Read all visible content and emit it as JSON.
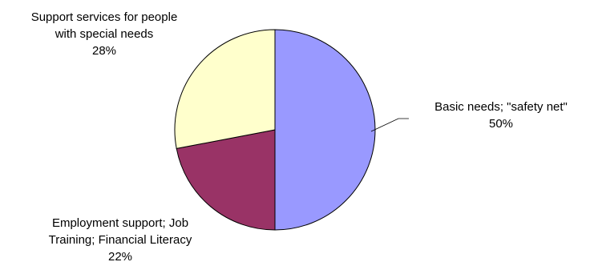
{
  "chart_data": {
    "type": "pie",
    "title": "",
    "slices": [
      {
        "name": "Basic needs; \"safety net\"",
        "label_lines": [
          "Basic needs; \"safety net\""
        ],
        "percent_label": "50%",
        "value": 50,
        "color": "#9999ff"
      },
      {
        "name": "Employment support; Job Training; Financial Literacy",
        "label_lines": [
          "Employment support; Job",
          "Training; Financial Literacy"
        ],
        "percent_label": "22%",
        "value": 22,
        "color": "#993366"
      },
      {
        "name": "Support services for people with special needs",
        "label_lines": [
          "Support services for people",
          "with  special needs"
        ],
        "percent_label": "28%",
        "value": 28,
        "color": "#ffffcc"
      }
    ],
    "start_angle": "12 o'clock",
    "direction": "clockwise",
    "legend": "none",
    "labels": "outside with category and percent"
  }
}
